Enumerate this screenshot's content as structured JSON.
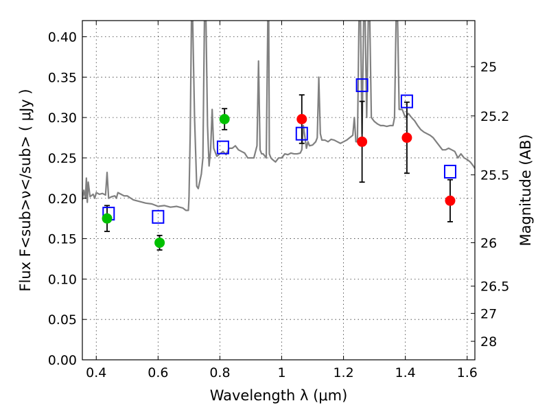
{
  "chart_data": {
    "type": "scatter",
    "title": "",
    "xlabel": "Wavelength  λ (μm)",
    "ylabel": "Flux  F<sub>ν</sub>  ( μJy )",
    "ylabel_right": "Magnitude (AB)",
    "xlim": [
      0.355,
      1.625
    ],
    "ylim": [
      0.0,
      0.42
    ],
    "grid": true,
    "x_ticks": [
      "0.4",
      "0.6",
      "0.8",
      "1",
      "1.2",
      "1.4",
      "1.6"
    ],
    "y_ticks": [
      "0.00",
      "0.05",
      "0.10",
      "0.15",
      "0.20",
      "0.25",
      "0.30",
      "0.35",
      "0.40"
    ],
    "right_ticks": [
      {
        "label": "25",
        "flux": 0.363
      },
      {
        "label": "25.2",
        "flux": 0.302
      },
      {
        "label": "25.5",
        "flux": 0.229
      },
      {
        "label": "26",
        "flux": 0.145
      },
      {
        "label": "26.5",
        "flux": 0.0912
      },
      {
        "label": "27",
        "flux": 0.0575
      },
      {
        "label": "28",
        "flux": 0.0229
      }
    ],
    "colors": {
      "model": "#808080",
      "observed_green": "#00c000",
      "observed_red": "#ff0000",
      "model_photometry": "#0000ff",
      "errorbar": "#000000"
    },
    "series": [
      {
        "marker": "circle",
        "color_key": "observed_green",
        "x": [
          0.435,
          0.605,
          0.815
        ],
        "y": [
          0.175,
          0.145,
          0.298
        ],
        "yerr": [
          0.016,
          0.009,
          0.013
        ]
      },
      {
        "marker": "circle",
        "color_key": "observed_red",
        "x": [
          1.065,
          1.26,
          1.405,
          1.545
        ],
        "y": [
          0.298,
          0.27,
          0.275,
          0.197
        ],
        "yerr": [
          0.03,
          0.05,
          0.044,
          0.026
        ]
      },
      {
        "marker": "open-square",
        "color_key": "model_photometry",
        "x": [
          0.44,
          0.6,
          0.81,
          1.065,
          1.26,
          1.405,
          1.545
        ],
        "y": [
          0.181,
          0.177,
          0.263,
          0.28,
          0.34,
          0.32,
          0.233
        ]
      },
      {
        "marker": "line",
        "color_key": "model",
        "x": [
          0.355,
          0.36,
          0.365,
          0.368,
          0.371,
          0.374,
          0.38,
          0.39,
          0.395,
          0.4,
          0.41,
          0.42,
          0.43,
          0.435,
          0.44,
          0.45,
          0.46,
          0.465,
          0.47,
          0.48,
          0.49,
          0.5,
          0.52,
          0.54,
          0.56,
          0.58,
          0.6,
          0.62,
          0.64,
          0.66,
          0.68,
          0.69,
          0.698,
          0.7,
          0.704,
          0.708,
          0.712,
          0.718,
          0.725,
          0.73,
          0.74,
          0.745,
          0.75,
          0.755,
          0.76,
          0.765,
          0.77,
          0.775,
          0.78,
          0.79,
          0.8,
          0.81,
          0.82,
          0.83,
          0.84,
          0.85,
          0.86,
          0.87,
          0.88,
          0.89,
          0.9,
          0.91,
          0.92,
          0.925,
          0.93,
          0.935,
          0.94,
          0.95,
          0.955,
          0.958,
          0.96,
          0.965,
          0.97,
          0.98,
          0.99,
          1.0,
          1.01,
          1.02,
          1.03,
          1.04,
          1.05,
          1.06,
          1.065,
          1.07,
          1.08,
          1.085,
          1.09,
          1.1,
          1.11,
          1.115,
          1.12,
          1.125,
          1.13,
          1.14,
          1.15,
          1.16,
          1.17,
          1.18,
          1.19,
          1.2,
          1.21,
          1.22,
          1.23,
          1.235,
          1.24,
          1.245,
          1.25,
          1.255,
          1.26,
          1.265,
          1.27,
          1.275,
          1.28,
          1.285,
          1.29,
          1.3,
          1.31,
          1.32,
          1.33,
          1.34,
          1.35,
          1.36,
          1.365,
          1.37,
          1.375,
          1.38,
          1.39,
          1.4,
          1.41,
          1.42,
          1.43,
          1.44,
          1.45,
          1.46,
          1.47,
          1.48,
          1.49,
          1.5,
          1.51,
          1.52,
          1.53,
          1.54,
          1.55,
          1.56,
          1.57,
          1.58,
          1.59,
          1.6,
          1.61,
          1.62,
          1.625
        ],
        "y": [
          0.198,
          0.21,
          0.2,
          0.225,
          0.195,
          0.22,
          0.202,
          0.205,
          0.2,
          0.207,
          0.205,
          0.206,
          0.204,
          0.232,
          0.2,
          0.202,
          0.203,
          0.2,
          0.207,
          0.205,
          0.203,
          0.203,
          0.198,
          0.196,
          0.194,
          0.193,
          0.19,
          0.191,
          0.189,
          0.19,
          0.188,
          0.185,
          0.185,
          0.2,
          0.28,
          0.42,
          0.42,
          0.3,
          0.215,
          0.212,
          0.23,
          0.25,
          0.42,
          0.42,
          0.29,
          0.24,
          0.26,
          0.31,
          0.262,
          0.252,
          0.255,
          0.258,
          0.254,
          0.262,
          0.262,
          0.265,
          0.26,
          0.258,
          0.256,
          0.25,
          0.25,
          0.25,
          0.265,
          0.37,
          0.26,
          0.255,
          0.255,
          0.25,
          0.42,
          0.42,
          0.255,
          0.25,
          0.248,
          0.245,
          0.25,
          0.25,
          0.255,
          0.254,
          0.256,
          0.255,
          0.255,
          0.256,
          0.26,
          0.29,
          0.262,
          0.27,
          0.265,
          0.266,
          0.27,
          0.275,
          0.35,
          0.28,
          0.272,
          0.272,
          0.27,
          0.273,
          0.272,
          0.27,
          0.268,
          0.27,
          0.272,
          0.275,
          0.278,
          0.3,
          0.27,
          0.27,
          0.42,
          0.42,
          0.28,
          0.42,
          0.42,
          0.3,
          0.42,
          0.42,
          0.3,
          0.295,
          0.292,
          0.29,
          0.29,
          0.289,
          0.29,
          0.29,
          0.3,
          0.42,
          0.42,
          0.31,
          0.31,
          0.3,
          0.305,
          0.3,
          0.296,
          0.29,
          0.285,
          0.282,
          0.28,
          0.278,
          0.275,
          0.27,
          0.265,
          0.26,
          0.26,
          0.262,
          0.26,
          0.258,
          0.25,
          0.255,
          0.25,
          0.248,
          0.245,
          0.24,
          0.237
        ]
      }
    ]
  }
}
